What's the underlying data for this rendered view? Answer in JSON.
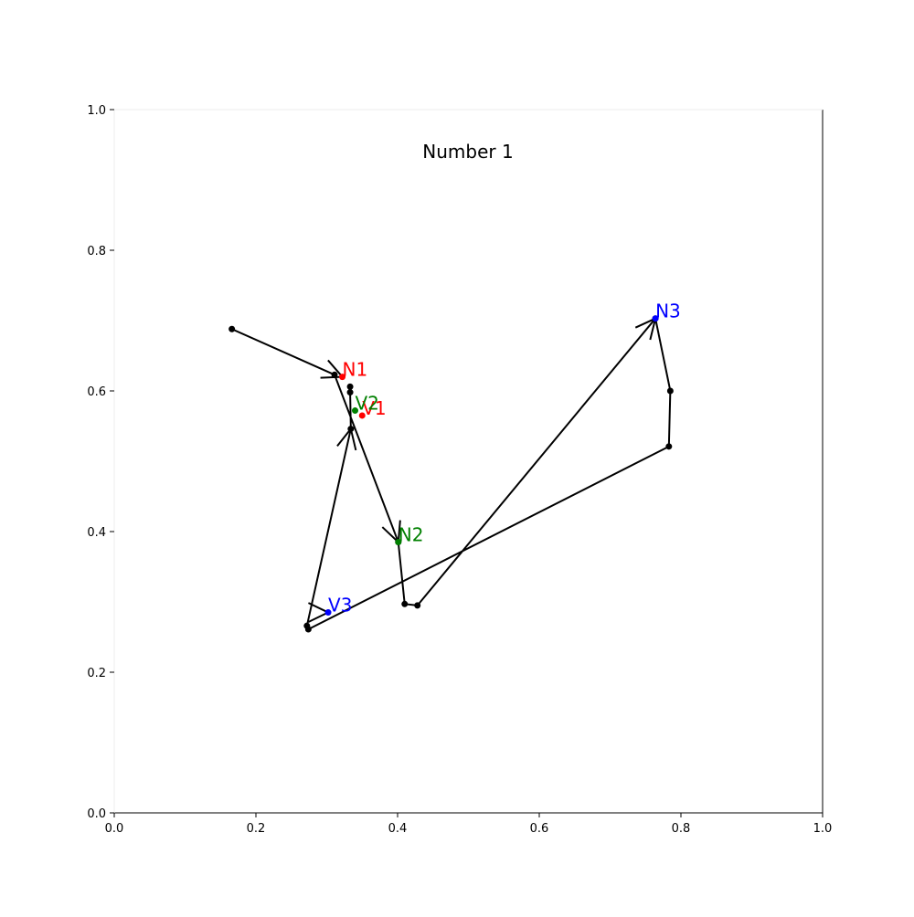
{
  "chart_data": {
    "type": "line",
    "title": "Number 1",
    "xlabel": "",
    "ylabel": "",
    "xlim": [
      0.0,
      1.0
    ],
    "ylim": [
      0.0,
      1.0
    ],
    "xticks": [
      "0.0",
      "0.2",
      "0.4",
      "0.6",
      "0.8",
      "1.0"
    ],
    "yticks": [
      "0.0",
      "0.2",
      "0.4",
      "0.6",
      "0.8",
      "1.0"
    ],
    "grid": false,
    "path_color": "#000000",
    "path": [
      {
        "x": 0.166,
        "y": 0.688
      },
      {
        "x": 0.311,
        "y": 0.623
      },
      {
        "x": 0.401,
        "y": 0.385
      },
      {
        "x": 0.41,
        "y": 0.297
      },
      {
        "x": 0.428,
        "y": 0.295
      },
      {
        "x": 0.764,
        "y": 0.703
      },
      {
        "x": 0.785,
        "y": 0.6
      },
      {
        "x": 0.783,
        "y": 0.521
      },
      {
        "x": 0.274,
        "y": 0.261
      },
      {
        "x": 0.272,
        "y": 0.266
      },
      {
        "x": 0.334,
        "y": 0.546
      },
      {
        "x": 0.333,
        "y": 0.598
      },
      {
        "x": 0.333,
        "y": 0.606
      }
    ],
    "arrowheads": [
      {
        "x": 0.322,
        "y": 0.62
      },
      {
        "x": 0.401,
        "y": 0.385
      },
      {
        "x": 0.764,
        "y": 0.703
      },
      {
        "x": 0.302,
        "y": 0.285
      },
      {
        "x": 0.334,
        "y": 0.546
      }
    ],
    "labeled_points": [
      {
        "label": "N1",
        "x": 0.322,
        "y": 0.62,
        "color": "#ff0000"
      },
      {
        "label": "V1",
        "x": 0.35,
        "y": 0.565,
        "color": "#ff0000"
      },
      {
        "label": "V2",
        "x": 0.34,
        "y": 0.572,
        "color": "#008000"
      },
      {
        "label": "N2",
        "x": 0.401,
        "y": 0.385,
        "color": "#008000"
      },
      {
        "label": "N3",
        "x": 0.764,
        "y": 0.703,
        "color": "#0000ff"
      },
      {
        "label": "V3",
        "x": 0.302,
        "y": 0.285,
        "color": "#0000ff"
      }
    ]
  }
}
